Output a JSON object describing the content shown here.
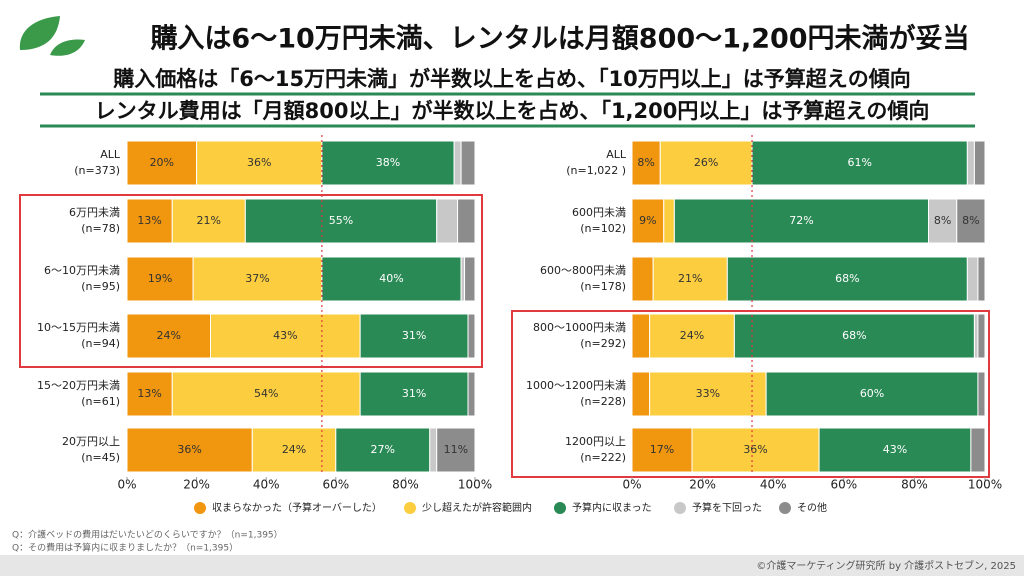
{
  "header": {
    "title": "購入は6〜10万円未満、レンタルは月額800〜1,200円未満が妥当",
    "subtitles": [
      "購入価格は「6〜15万円未満」が半数以上を占め、「10万円以上」は予算超えの傾向",
      "レンタル費用は「月額800以上」が半数以上を占め、「1,200円以上」は予算超えの傾向"
    ]
  },
  "footnotes": [
    "Q：介護ベッドの費用はだいたいどのくらいですか？（n=1,395）",
    "Q：その費用は予算内に収まりましたか？（n=1,395）"
  ],
  "copyright": "©介護マーケティング研究所 by 介護ポストセブン, 2025",
  "chart_data": [
    {
      "type": "stacked-bar-horizontal",
      "categories": [
        "ALL",
        "6万円未満",
        "6〜10万円未満",
        "10〜15万円未満",
        "15〜20万円未満",
        "20万円以上"
      ],
      "sample_sizes": [
        "(n=373)",
        "(n=78)",
        "(n=95)",
        "(n=94)",
        "(n=61)",
        "(n=45)"
      ],
      "series": [
        {
          "name": "収まらなかった（予算オーバーした）",
          "color": "#f0960f",
          "values": [
            20,
            13,
            19,
            24,
            13,
            36
          ],
          "value_labels": [
            "20%",
            "13%",
            "19%",
            "24%",
            "13%",
            "36%"
          ]
        },
        {
          "name": "少し超えたが許容範囲内",
          "color": "#fbcd3f",
          "values": [
            36,
            21,
            37,
            43,
            54,
            24
          ],
          "value_labels": [
            "36%",
            "21%",
            "37%",
            "43%",
            "54%",
            "24%"
          ]
        },
        {
          "name": "予算内に収まった",
          "color": "#2a8a55",
          "values": [
            38,
            55,
            40,
            31,
            31,
            27
          ],
          "value_labels": [
            "38%",
            "55%",
            "40%",
            "31%",
            "31%",
            "27%"
          ]
        },
        {
          "name": "予算を下回った",
          "color": "#c8c8c8",
          "values": [
            2,
            6,
            1,
            0,
            0,
            2
          ],
          "value_labels": [
            null,
            null,
            null,
            null,
            null,
            null
          ]
        },
        {
          "name": "その他",
          "color": "#8c8c8c",
          "values": [
            4,
            5,
            3,
            2,
            2,
            11
          ],
          "value_labels": [
            null,
            null,
            null,
            null,
            null,
            "11%"
          ]
        }
      ],
      "xlim": [
        0,
        100
      ],
      "xticks": [
        {
          "value": 0,
          "label": "0%"
        },
        {
          "value": 20,
          "label": "20%"
        },
        {
          "value": 40,
          "label": "40%"
        },
        {
          "value": 60,
          "label": "60%"
        },
        {
          "value": 80,
          "label": "80%"
        },
        {
          "value": 100,
          "label": "100%"
        }
      ],
      "reference_x": 56
    },
    {
      "type": "stacked-bar-horizontal",
      "categories": [
        "ALL",
        "600円未満",
        "600〜800円未満",
        "800〜1000円未満",
        "1000〜1200円未満",
        "1200円以上"
      ],
      "sample_sizes": [
        "(n=1,022 )",
        "(n=102)",
        "(n=178)",
        "(n=292)",
        "(n=228)",
        "(n=222)"
      ],
      "series": [
        {
          "name": "収まらなかった（予算オーバーした）",
          "color": "#f0960f",
          "values": [
            8,
            9,
            6,
            5,
            5,
            17
          ],
          "value_labels": [
            "8%",
            "9%",
            null,
            null,
            null,
            "17%"
          ]
        },
        {
          "name": "少し超えたが許容範囲内",
          "color": "#fbcd3f",
          "values": [
            26,
            3,
            21,
            24,
            33,
            36
          ],
          "value_labels": [
            "26%",
            null,
            "21%",
            "24%",
            "33%",
            "36%"
          ]
        },
        {
          "name": "予算内に収まった",
          "color": "#2a8a55",
          "values": [
            61,
            72,
            68,
            68,
            60,
            43
          ],
          "value_labels": [
            "61%",
            "72%",
            "68%",
            "68%",
            "60%",
            "43%"
          ]
        },
        {
          "name": "予算を下回った",
          "color": "#c8c8c8",
          "values": [
            2,
            8,
            3,
            1,
            0,
            0
          ],
          "value_labels": [
            null,
            "8%",
            null,
            null,
            null,
            null
          ]
        },
        {
          "name": "その他",
          "color": "#8c8c8c",
          "values": [
            3,
            8,
            2,
            2,
            2,
            4
          ],
          "value_labels": [
            null,
            "8%",
            null,
            null,
            null,
            null
          ]
        }
      ],
      "xlim": [
        0,
        100
      ],
      "xticks": [
        {
          "value": 0,
          "label": "0%"
        },
        {
          "value": 20,
          "label": "20%"
        },
        {
          "value": 40,
          "label": "40%"
        },
        {
          "value": 60,
          "label": "60%"
        },
        {
          "value": 80,
          "label": "80%"
        },
        {
          "value": 100,
          "label": "100%"
        }
      ],
      "reference_x": 34
    }
  ]
}
